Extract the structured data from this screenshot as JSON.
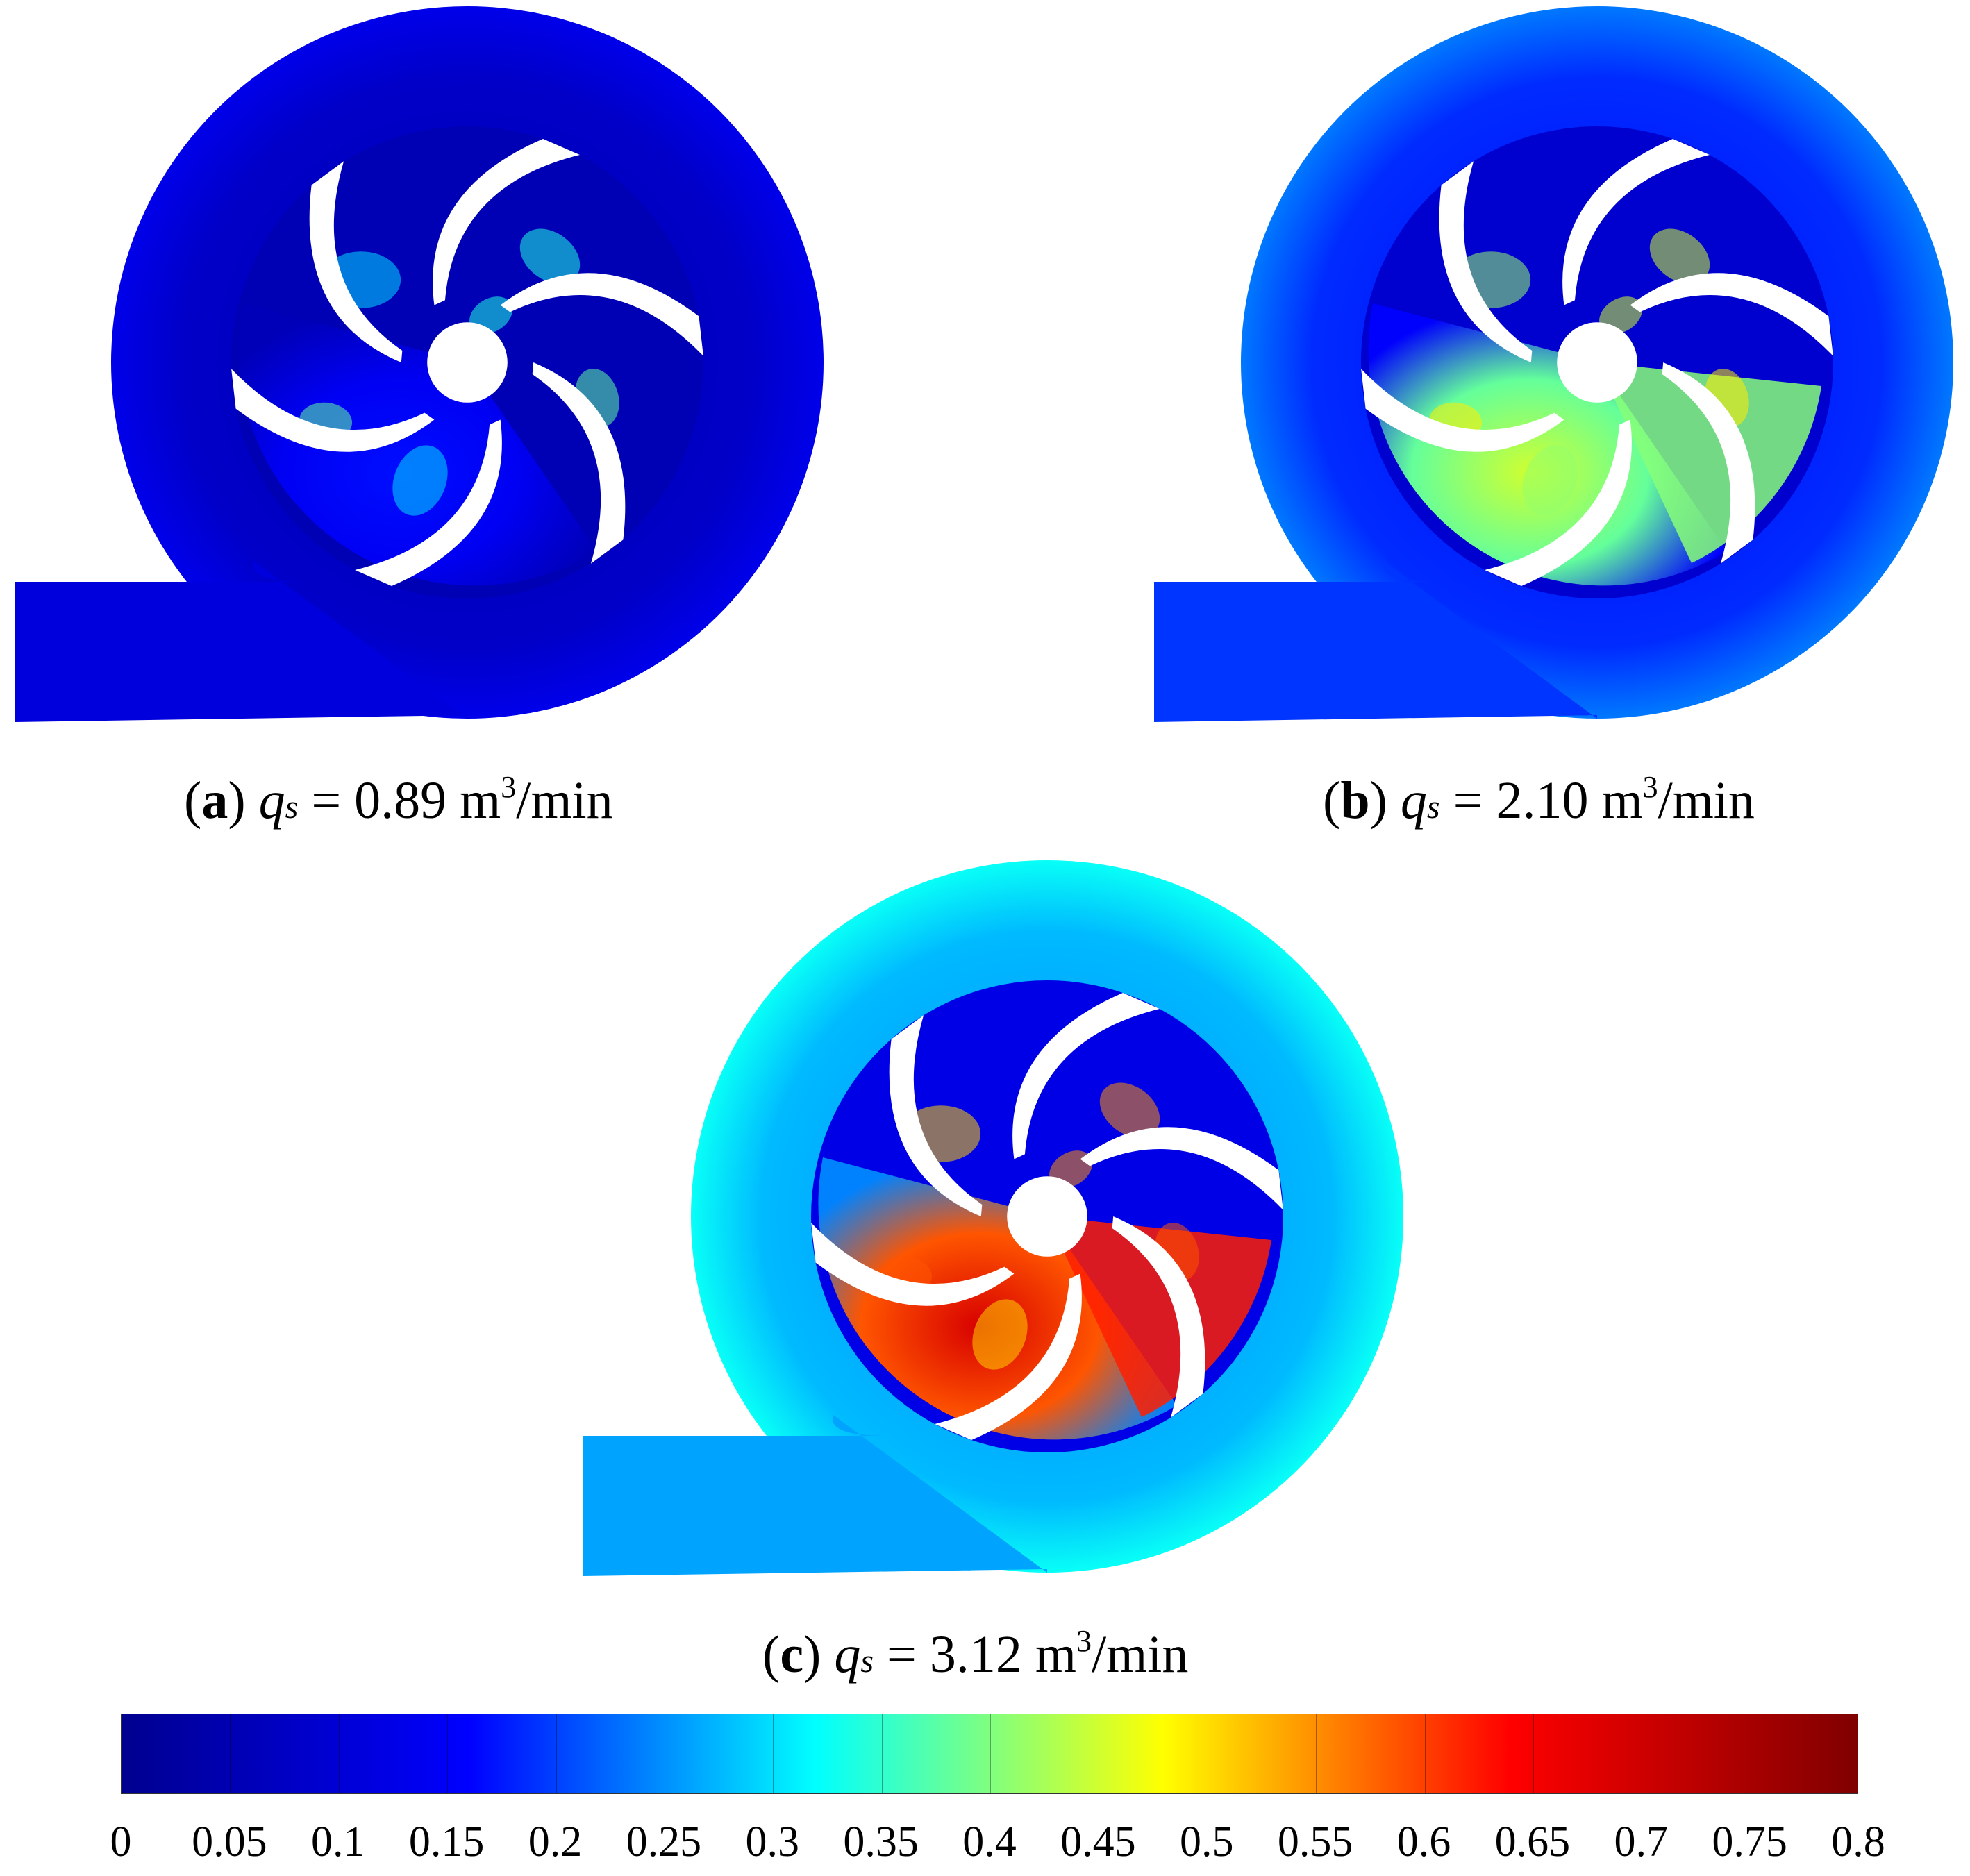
{
  "panels": [
    {
      "id": "a",
      "label": "a",
      "flow_symbol": "q",
      "flow_subscript": "s",
      "value_text": " = 0.89 m",
      "unit_exponent": "3",
      "unit_tail": "/min",
      "flow_rate_m3_per_min": 0.89,
      "intensity": 0.08
    },
    {
      "id": "b",
      "label": "b",
      "flow_symbol": "q",
      "flow_subscript": "s",
      "value_text": " = 2.10 m",
      "unit_exponent": "3",
      "unit_tail": "/min",
      "flow_rate_m3_per_min": 2.1,
      "intensity": 0.55
    },
    {
      "id": "c",
      "label": "c",
      "flow_symbol": "q",
      "flow_subscript": "s",
      "value_text": " = 3.12 m",
      "unit_exponent": "3",
      "unit_tail": "/min",
      "flow_rate_m3_per_min": 3.12,
      "intensity": 0.95
    }
  ],
  "colorbar": {
    "min": 0,
    "max": 0.8,
    "ticks": [
      "0",
      "0.05",
      "0.1",
      "0.15",
      "0.2",
      "0.25",
      "0.3",
      "0.35",
      "0.4",
      "0.45",
      "0.5",
      "0.55",
      "0.6",
      "0.65",
      "0.7",
      "0.75",
      "0.8"
    ],
    "colormap": [
      "#00008f",
      "#0000ff",
      "#00ffff",
      "#ffff00",
      "#ff0000",
      "#800000"
    ]
  },
  "colors": {
    "background": "#ffffff",
    "blade": "#ffffff"
  }
}
